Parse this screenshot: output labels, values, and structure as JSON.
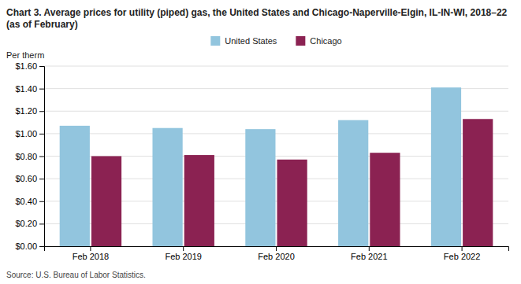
{
  "chart_data": {
    "type": "bar",
    "title": "Chart 3. Average prices for utility (piped) gas, the United States and Chicago-Naperville-Elgin, IL-IN-WI, 2018–22 (as of February)",
    "ylabel": "Per therm",
    "source": "Source: U.S. Bureau of Labor Statistics.",
    "categories": [
      "Feb 2018",
      "Feb 2019",
      "Feb 2020",
      "Feb 2021",
      "Feb 2022"
    ],
    "series": [
      {
        "name": "United States",
        "color": "#92C5DE",
        "values": [
          1.07,
          1.05,
          1.04,
          1.12,
          1.41
        ]
      },
      {
        "name": "Chicago",
        "color": "#8B2252",
        "values": [
          0.8,
          0.81,
          0.77,
          0.83,
          1.13
        ]
      }
    ],
    "ylim": [
      0.0,
      1.6
    ],
    "yticks": [
      {
        "value": 0.0,
        "label": "$0.00"
      },
      {
        "value": 0.2,
        "label": "$0.20"
      },
      {
        "value": 0.4,
        "label": "$0.40"
      },
      {
        "value": 0.6,
        "label": "$0.60"
      },
      {
        "value": 0.8,
        "label": "$0.80"
      },
      {
        "value": 1.0,
        "label": "$1.00"
      },
      {
        "value": 1.2,
        "label": "$1.20"
      },
      {
        "value": 1.4,
        "label": "$1.40"
      },
      {
        "value": 1.6,
        "label": "$1.60"
      }
    ],
    "grid": true,
    "legend": "top"
  }
}
